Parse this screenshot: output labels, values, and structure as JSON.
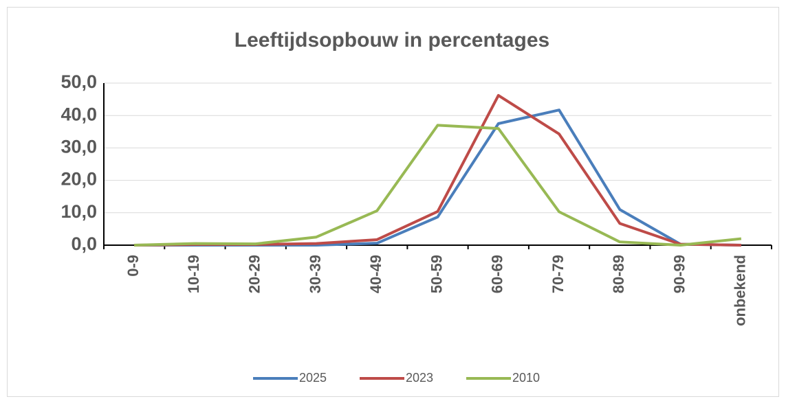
{
  "chart_data": {
    "type": "line",
    "title": "Leeftijdsopbouw in percentages",
    "categories": [
      "0-9",
      "10-19",
      "20-29",
      "30-39",
      "40-49",
      "50-59",
      "60-69",
      "70-79",
      "80-89",
      "90-99",
      "onbekend"
    ],
    "series": [
      {
        "name": "2025",
        "color": "#4a7ebb",
        "values": [
          0,
          0,
          0,
          0,
          0.6,
          8.7,
          37.5,
          41.7,
          11,
          0.3,
          0
        ]
      },
      {
        "name": "2023",
        "color": "#be4b48",
        "values": [
          0,
          0.2,
          0.2,
          0.5,
          1.7,
          10.4,
          46.2,
          34.3,
          6.7,
          0.3,
          0
        ]
      },
      {
        "name": "2010",
        "color": "#98b954",
        "values": [
          0,
          0.5,
          0.4,
          2.5,
          10.6,
          37,
          36,
          10.3,
          1,
          0,
          2
        ]
      }
    ],
    "ylim": [
      0,
      50
    ],
    "yticks": [
      {
        "value": 0,
        "label": "0,0"
      },
      {
        "value": 10,
        "label": "10,0"
      },
      {
        "value": 20,
        "label": "20,0"
      },
      {
        "value": 30,
        "label": "30,0"
      },
      {
        "value": 40,
        "label": "40,0"
      },
      {
        "value": 50,
        "label": "50,0"
      }
    ],
    "grid": true,
    "legend": "bottom"
  }
}
